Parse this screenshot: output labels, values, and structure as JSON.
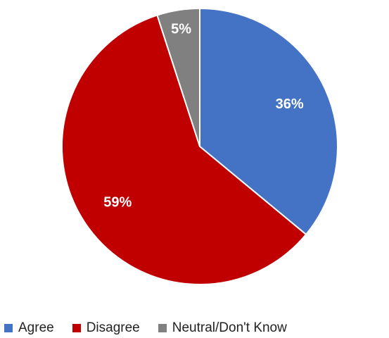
{
  "chart_data": {
    "type": "pie",
    "title": "",
    "categories": [
      "Agree",
      "Disagree",
      "Neutral/Don't Know"
    ],
    "values": [
      36,
      59,
      5
    ],
    "value_labels": [
      "36%",
      "59%",
      "5%"
    ],
    "colors": [
      "#4472C4",
      "#C00000",
      "#808080"
    ],
    "start_angle": "12 o'clock",
    "direction": "clockwise",
    "legend_position": "bottom"
  },
  "legend": {
    "items": [
      {
        "label": "Agree",
        "color": "#4472C4"
      },
      {
        "label": "Disagree",
        "color": "#C00000"
      },
      {
        "label": "Neutral/Don't Know",
        "color": "#808080"
      }
    ]
  }
}
